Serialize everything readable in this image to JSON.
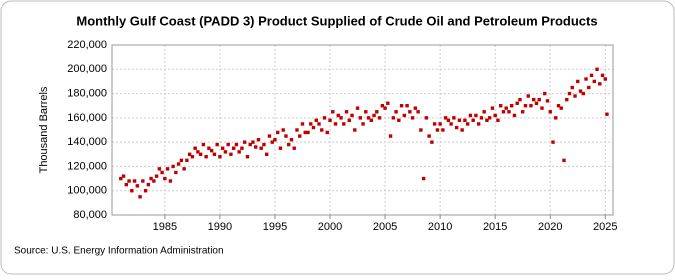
{
  "chart_data": {
    "type": "scatter",
    "title": "Monthly Gulf Coast (PADD 3) Product Supplied of Crude Oil and Petroleum Products",
    "y_label": "Thousand Barrels",
    "source": "Source: U.S. Energy Information Administration",
    "color": "#c00000",
    "grid": true,
    "xlim": [
      1980.2,
      2025.7
    ],
    "xticks": [
      1985,
      1990,
      1995,
      2000,
      2005,
      2010,
      2015,
      2020,
      2025
    ],
    "ylim": [
      80000,
      220000
    ],
    "yticks": [
      {
        "value": 80000,
        "label": "80,000"
      },
      {
        "value": 100000,
        "label": "100,000"
      },
      {
        "value": 120000,
        "label": "120,000"
      },
      {
        "value": 140000,
        "label": "140,000"
      },
      {
        "value": 160000,
        "label": "160,000"
      },
      {
        "value": 180000,
        "label": "180,000"
      },
      {
        "value": 200000,
        "label": "200,000"
      },
      {
        "value": 220000,
        "label": "220,000"
      }
    ],
    "x": [
      1981,
      1981.25,
      1981.5,
      1981.75,
      1982,
      1982.25,
      1982.5,
      1982.75,
      1983,
      1983.25,
      1983.5,
      1983.75,
      1984,
      1984.25,
      1984.5,
      1984.75,
      1985,
      1985.25,
      1985.5,
      1985.75,
      1986,
      1986.25,
      1986.5,
      1986.75,
      1987,
      1987.25,
      1987.5,
      1987.75,
      1988,
      1988.25,
      1988.5,
      1988.75,
      1989,
      1989.25,
      1989.5,
      1989.75,
      1990,
      1990.25,
      1990.5,
      1990.75,
      1991,
      1991.25,
      1991.5,
      1991.75,
      1992,
      1992.25,
      1992.5,
      1992.75,
      1993,
      1993.25,
      1993.5,
      1993.75,
      1994,
      1994.25,
      1994.5,
      1994.75,
      1995,
      1995.25,
      1995.5,
      1995.75,
      1996,
      1996.25,
      1996.5,
      1996.75,
      1997,
      1997.25,
      1997.5,
      1997.75,
      1998,
      1998.25,
      1998.5,
      1998.75,
      1999,
      1999.25,
      1999.5,
      1999.75,
      2000,
      2000.25,
      2000.5,
      2000.75,
      2001,
      2001.25,
      2001.5,
      2001.75,
      2002,
      2002.25,
      2002.5,
      2002.75,
      2003,
      2003.25,
      2003.5,
      2003.75,
      2004,
      2004.25,
      2004.5,
      2004.75,
      2005,
      2005.25,
      2005.5,
      2005.75,
      2006,
      2006.25,
      2006.5,
      2006.75,
      2007,
      2007.25,
      2007.5,
      2007.75,
      2008,
      2008.25,
      2008.5,
      2008.75,
      2009,
      2009.25,
      2009.5,
      2009.75,
      2010,
      2010.25,
      2010.5,
      2010.75,
      2011,
      2011.25,
      2011.5,
      2011.75,
      2012,
      2012.25,
      2012.5,
      2012.75,
      2013,
      2013.25,
      2013.5,
      2013.75,
      2014,
      2014.25,
      2014.5,
      2014.75,
      2015,
      2015.25,
      2015.5,
      2015.75,
      2016,
      2016.25,
      2016.5,
      2016.75,
      2017,
      2017.25,
      2017.5,
      2017.75,
      2018,
      2018.25,
      2018.5,
      2018.75,
      2019,
      2019.25,
      2019.5,
      2019.75,
      2020,
      2020.25,
      2020.5,
      2020.75,
      2021,
      2021.25,
      2021.5,
      2021.75,
      2022,
      2022.25,
      2022.5,
      2022.75,
      2023,
      2023.25,
      2023.5,
      2023.75,
      2024,
      2024.25,
      2024.5,
      2024.75,
      2025,
      2025.15
    ],
    "values": [
      110000,
      112000,
      105000,
      108000,
      100000,
      108000,
      104000,
      95000,
      108000,
      100000,
      105000,
      110000,
      108000,
      112000,
      118000,
      115000,
      110000,
      118000,
      108000,
      120000,
      115000,
      122000,
      125000,
      118000,
      125000,
      130000,
      128000,
      135000,
      132000,
      130000,
      138000,
      128000,
      135000,
      133000,
      130000,
      138000,
      128000,
      135000,
      132000,
      138000,
      130000,
      135000,
      138000,
      132000,
      135000,
      140000,
      128000,
      138000,
      140000,
      136000,
      142000,
      135000,
      138000,
      130000,
      145000,
      140000,
      142000,
      148000,
      135000,
      150000,
      145000,
      138000,
      142000,
      135000,
      150000,
      145000,
      155000,
      148000,
      148000,
      155000,
      152000,
      158000,
      155000,
      150000,
      160000,
      148000,
      158000,
      165000,
      155000,
      162000,
      160000,
      155000,
      165000,
      158000,
      162000,
      150000,
      168000,
      160000,
      155000,
      165000,
      160000,
      158000,
      162000,
      165000,
      160000,
      170000,
      168000,
      172000,
      145000,
      160000,
      165000,
      158000,
      170000,
      162000,
      170000,
      165000,
      160000,
      168000,
      165000,
      150000,
      110000,
      160000,
      145000,
      140000,
      155000,
      150000,
      155000,
      150000,
      160000,
      158000,
      155000,
      160000,
      152000,
      158000,
      150000,
      158000,
      155000,
      162000,
      158000,
      162000,
      155000,
      160000,
      165000,
      158000,
      160000,
      168000,
      162000,
      158000,
      170000,
      165000,
      168000,
      165000,
      170000,
      162000,
      172000,
      175000,
      165000,
      170000,
      178000,
      170000,
      175000,
      172000,
      175000,
      168000,
      180000,
      174000,
      165000,
      140000,
      160000,
      170000,
      168000,
      125000,
      175000,
      180000,
      185000,
      178000,
      190000,
      182000,
      180000,
      192000,
      185000,
      195000,
      190000,
      200000,
      188000,
      195000,
      192000,
      163000
    ]
  }
}
